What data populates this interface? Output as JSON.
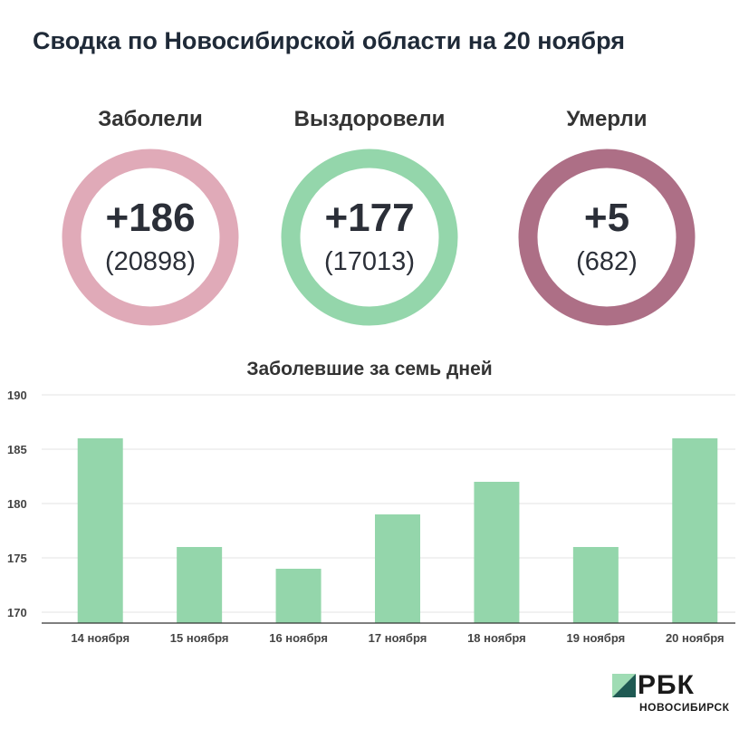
{
  "title": "Сводка по Новосибирской области на 20 ноября",
  "stats": [
    {
      "label": "Заболели",
      "delta": "+186",
      "total": "(20898)",
      "color": "#e0aab8"
    },
    {
      "label": "Выздоровели",
      "delta": "+177",
      "total": "(17013)",
      "color": "#94d6ab"
    },
    {
      "label": "Умерли",
      "delta": "+5",
      "total": "(682)",
      "color": "#ad6f86"
    }
  ],
  "chart_data": {
    "type": "bar",
    "title": "Заболевшие за семь дней",
    "categories": [
      "14 ноября",
      "15 ноября",
      "16 ноября",
      "17 ноября",
      "18 ноября",
      "19 ноября",
      "20 ноября"
    ],
    "values": [
      186,
      176,
      174,
      179,
      182,
      176,
      186
    ],
    "ylim": [
      169,
      190
    ],
    "yticks": [
      170,
      175,
      180,
      185,
      190
    ],
    "bar_color": "#94d6ab",
    "grid": true
  },
  "logo": {
    "text": "РБК",
    "subtitle": "НОВОСИБИРСК"
  }
}
